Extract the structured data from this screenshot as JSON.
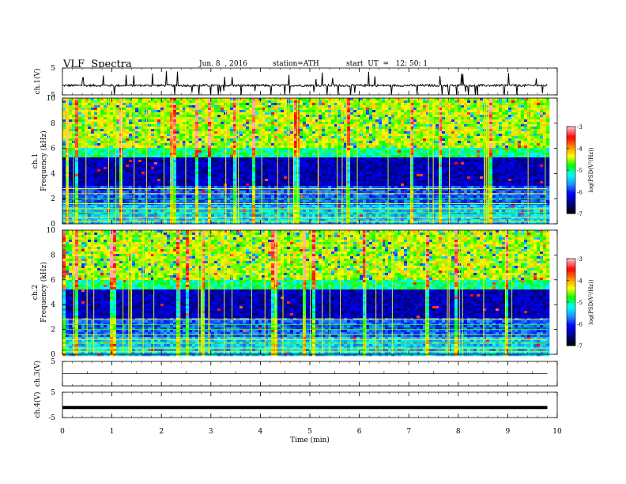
{
  "header": {
    "title": "VLF  Spectra",
    "date": "Jun. 8  , 2016",
    "station": "station=ATH",
    "start": "start  UT  =   12: 50: 1"
  },
  "chart_data": [
    {
      "id": "ch1-waveform",
      "type": "line",
      "ylabel": "ch.1(V)",
      "ylim": [
        -5,
        5
      ],
      "ytick_labels": [
        "5",
        "-5"
      ],
      "xlim": [
        0,
        10
      ],
      "baseline_level": -1.5,
      "noise_amplitude": 0.8,
      "data_end_min": 9.8
    },
    {
      "id": "ch1-spectrogram",
      "type": "heatmap",
      "ylabel": "ch.1\nFrequency  (kHz)",
      "ylim": [
        0,
        10
      ],
      "ytick_labels": [
        "0",
        "2",
        "4",
        "6",
        "8",
        "10"
      ],
      "xlim": [
        0,
        10
      ],
      "data_end_min": 9.8,
      "colorbar": {
        "label": "log(PSD(V²/Hz))",
        "range": [
          -7,
          -3
        ],
        "tick_labels": [
          "-3",
          "-4",
          "-5",
          "-6",
          "-7"
        ]
      }
    },
    {
      "id": "ch2-spectrogram",
      "type": "heatmap",
      "ylabel": "ch.2\nFrequency  (kHz)",
      "ylim": [
        0,
        10
      ],
      "ytick_labels": [
        "0",
        "2",
        "4",
        "6",
        "8",
        "10"
      ],
      "xlim": [
        0,
        10
      ],
      "data_end_min": 9.8,
      "colorbar": {
        "label": "log(PSD(V²/Hz))",
        "range": [
          -7,
          -3
        ],
        "tick_labels": [
          "-3",
          "-4",
          "-5",
          "-6",
          "-7"
        ]
      }
    },
    {
      "id": "ch3-waveform",
      "type": "line",
      "ylabel": "ch.3(V)",
      "ylim": [
        -5,
        5
      ],
      "ytick_labels": [
        "5"
      ],
      "xlim": [
        0,
        10
      ],
      "baseline_level": 0,
      "data_end_min": 9.8
    },
    {
      "id": "ch4-waveform",
      "type": "line",
      "ylabel": "ch.4(V)",
      "ylim": [
        -5,
        5
      ],
      "ytick_labels": [
        "5",
        "-5"
      ],
      "xlim": [
        0,
        10
      ],
      "baseline_level": -1,
      "data_end_min": 9.8
    }
  ],
  "xaxis": {
    "label": "Time  (min)",
    "tick_labels": [
      "0",
      "1",
      "2",
      "3",
      "4",
      "5",
      "6",
      "7",
      "8",
      "9",
      "10"
    ]
  },
  "colors": {
    "colormap": [
      "#000000",
      "#00008b",
      "#0000ff",
      "#1e90ff",
      "#00ffff",
      "#00ff00",
      "#ffff00",
      "#ff8c00",
      "#ff0000",
      "#ffb0b0"
    ]
  }
}
